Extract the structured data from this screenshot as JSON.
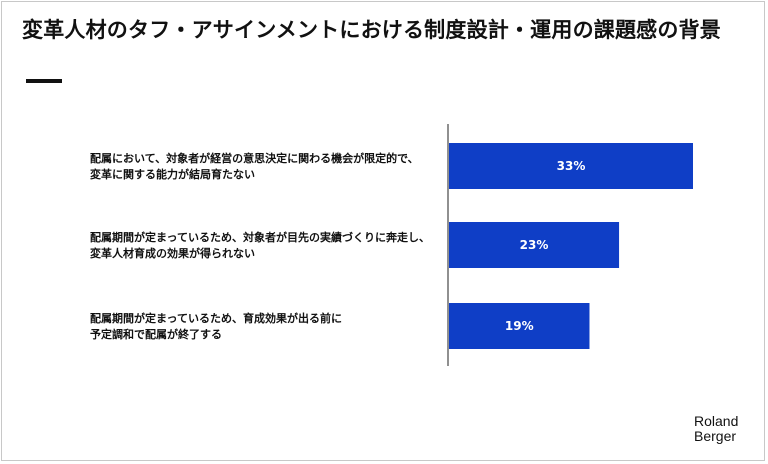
{
  "title": "変革人材のタフ・アサインメントにおける制度設計・運用の課題感の背景",
  "brand": {
    "line1": "Roland",
    "line2": "Berger"
  },
  "colors": {
    "bar": "#0f3ec6",
    "text": "#111111",
    "bar_label": "#ffffff",
    "axis": "#222222"
  },
  "chart_data": {
    "type": "bar",
    "orientation": "horizontal",
    "categories": [
      [
        "配属において、対象者が経営の意思決定に関わる機会が限定的で、",
        "変革に関する能力が結局育たない"
      ],
      [
        "配属期間が定まっているため、対象者が目先の実績づくりに奔走し、",
        "変革人材育成の効果が得られない"
      ],
      [
        "配属期間が定まっているため、育成効果が出る前に",
        "予定調和で配属が終了する"
      ]
    ],
    "values": [
      33,
      23,
      19
    ],
    "value_labels": [
      "33%",
      "23%",
      "19%"
    ],
    "xlim": [
      0,
      40
    ],
    "grid": false,
    "legend": "none"
  }
}
